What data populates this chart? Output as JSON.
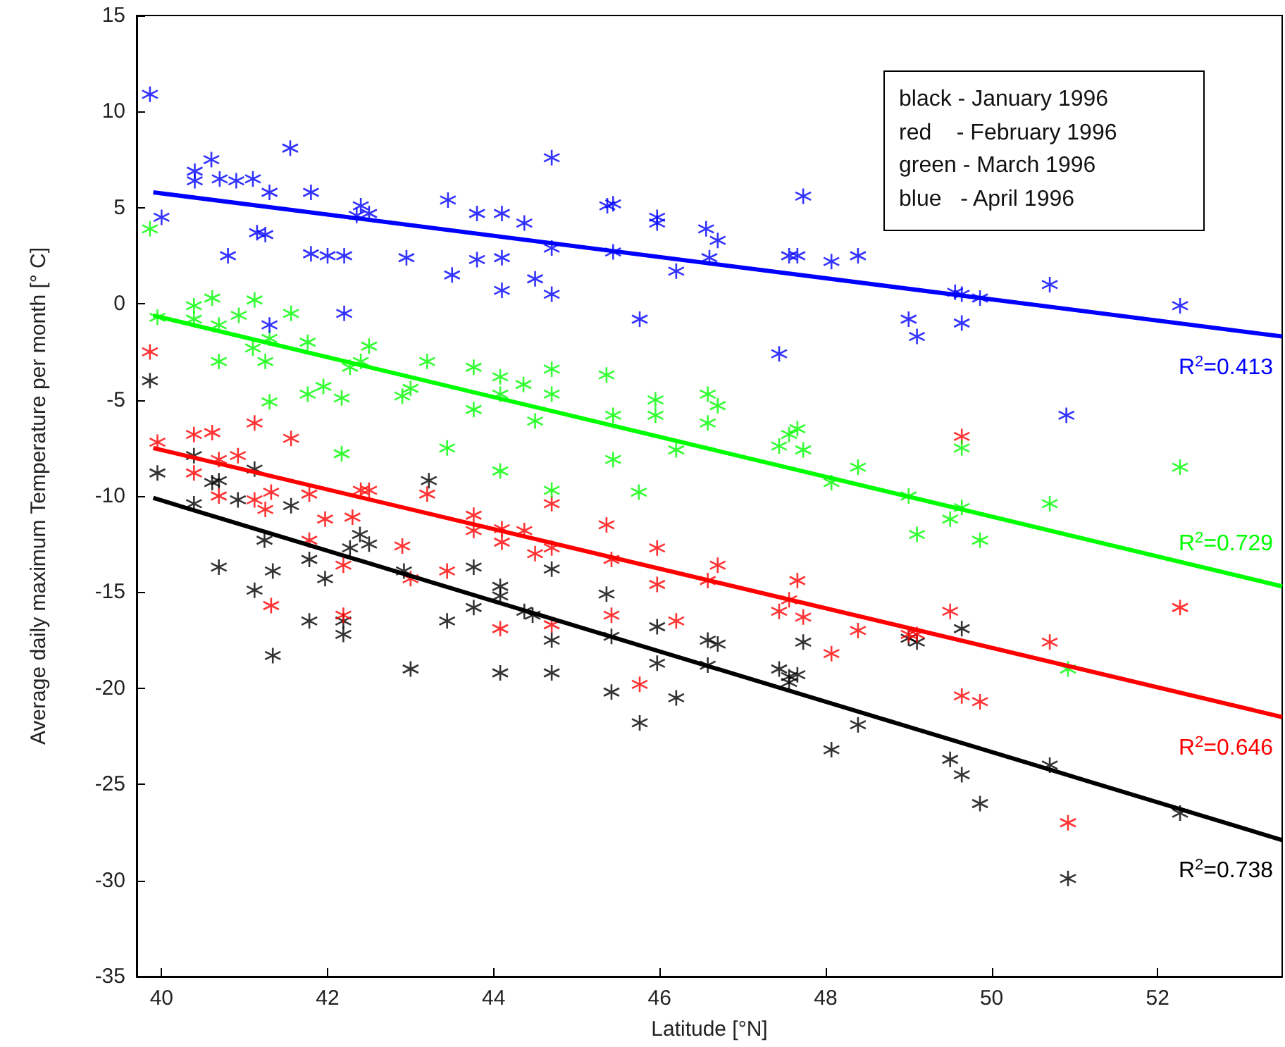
{
  "chart_data": {
    "type": "scatter",
    "xlabel": "Latitude [°N]",
    "ylabel": "Average daily maximum Temperature per month [° C]",
    "xlim": [
      39.7,
      53.5
    ],
    "xticks": [
      40,
      42,
      44,
      46,
      48,
      50,
      52
    ],
    "ylim": [
      -35,
      15
    ],
    "yticks": [
      -35,
      -30,
      -25,
      -20,
      -15,
      -10,
      -5,
      0,
      5,
      10,
      15
    ],
    "grid": false,
    "marker": "cross",
    "annotations": [
      "black - January 1996",
      "red    - February 1996",
      "green - March 1996",
      "blue   - April 1996",
      "R$^{2}$=0.738",
      "R$^{2}$=0.646",
      "R$^{2}$=0.729",
      "R$^{2}$=0.413"
    ],
    "series": [
      {
        "color": "#000000",
        "x": [
          39.86,
          39.95,
          40.39,
          40.39,
          40.61,
          40.69,
          40.69,
          40.92,
          41.12,
          41.12,
          41.24,
          41.34,
          41.34,
          41.56,
          41.78,
          41.78,
          41.97,
          42.19,
          42.19,
          42.27,
          42.39,
          42.5,
          42.92,
          43.0,
          43.22,
          43.44,
          43.76,
          43.76,
          44.08,
          44.08,
          44.08,
          44.37,
          44.47,
          44.7,
          44.7,
          44.7,
          45.36,
          45.42,
          45.42,
          45.76,
          45.97,
          45.97,
          46.2,
          46.58,
          46.58,
          46.7,
          47.44,
          47.56,
          47.56,
          47.66,
          47.73,
          48.07,
          48.39,
          49.0,
          49.1,
          49.5,
          49.64,
          49.64,
          49.86,
          50.7,
          50.92,
          52.27
        ],
        "values": [
          -4.0,
          -8.8,
          -7.9,
          -10.4,
          -9.3,
          -9.2,
          -13.7,
          -10.2,
          -8.6,
          -14.9,
          -12.3,
          -13.9,
          -18.3,
          -10.5,
          -13.3,
          -16.5,
          -14.3,
          -16.5,
          -17.2,
          -12.7,
          -12.0,
          -12.5,
          -13.9,
          -19.0,
          -9.2,
          -16.5,
          -13.7,
          -15.8,
          -14.7,
          -15.2,
          -19.2,
          -16.0,
          -16.2,
          -13.8,
          -17.5,
          -19.2,
          -15.1,
          -17.3,
          -20.2,
          -21.8,
          -16.8,
          -18.7,
          -20.5,
          -17.5,
          -18.8,
          -17.7,
          -19.0,
          -19.4,
          -19.7,
          -19.3,
          -17.6,
          -23.2,
          -21.9,
          -17.4,
          -17.6,
          -23.7,
          -16.9,
          -24.5,
          -26.0,
          -24.0,
          -29.9,
          -26.5
        ]
      },
      {
        "color": "#ff0000",
        "x": [
          39.86,
          39.95,
          40.39,
          40.39,
          40.61,
          40.69,
          40.69,
          40.92,
          41.12,
          41.12,
          41.25,
          41.32,
          41.32,
          41.56,
          41.78,
          41.78,
          41.97,
          42.19,
          42.19,
          42.3,
          42.4,
          42.5,
          42.9,
          43.0,
          43.2,
          43.44,
          43.76,
          43.76,
          44.08,
          44.1,
          44.1,
          44.37,
          44.5,
          44.7,
          44.7,
          44.7,
          45.36,
          45.42,
          45.42,
          45.76,
          45.97,
          45.97,
          46.2,
          46.58,
          46.7,
          47.44,
          47.56,
          47.66,
          47.73,
          48.07,
          48.39,
          49.0,
          49.1,
          49.5,
          49.64,
          49.64,
          49.86,
          50.7,
          50.92,
          52.27
        ],
        "values": [
          -2.5,
          -7.2,
          -6.8,
          -8.8,
          -6.7,
          -8.1,
          -10.0,
          -7.9,
          -6.2,
          -10.2,
          -10.7,
          -9.8,
          -15.7,
          -7.0,
          -9.9,
          -12.3,
          -11.2,
          -13.6,
          -16.2,
          -11.1,
          -9.7,
          -9.7,
          -12.6,
          -14.3,
          -9.9,
          -13.9,
          -11.0,
          -11.8,
          -16.9,
          -11.7,
          -12.4,
          -11.8,
          -13.0,
          -10.4,
          -12.7,
          -16.7,
          -11.5,
          -13.3,
          -16.2,
          -19.8,
          -12.7,
          -14.6,
          -16.5,
          -14.4,
          -13.6,
          -16.0,
          -15.4,
          -14.4,
          -16.3,
          -18.2,
          -17.0,
          -17.2,
          -17.2,
          -16.0,
          -6.9,
          -20.4,
          -20.7,
          -17.6,
          -27.0,
          -15.8
        ]
      },
      {
        "color": "#00ff00",
        "x": [
          39.86,
          39.95,
          40.39,
          40.39,
          40.61,
          40.69,
          40.69,
          40.93,
          41.12,
          41.1,
          41.25,
          41.3,
          41.3,
          41.56,
          41.76,
          41.76,
          41.95,
          42.17,
          42.17,
          42.27,
          42.4,
          42.5,
          42.9,
          43.0,
          43.2,
          43.44,
          43.76,
          43.76,
          44.08,
          44.08,
          44.08,
          44.36,
          44.5,
          44.7,
          44.7,
          44.7,
          45.36,
          45.44,
          45.44,
          45.75,
          45.95,
          45.95,
          46.2,
          46.58,
          46.58,
          46.7,
          47.44,
          47.56,
          47.66,
          47.73,
          48.07,
          48.39,
          49.0,
          49.1,
          49.5,
          49.64,
          49.64,
          49.86,
          50.7,
          50.92,
          52.27
        ],
        "values": [
          3.9,
          -0.7,
          -0.1,
          -0.8,
          0.3,
          -1.1,
          -3.0,
          -0.6,
          0.2,
          -2.3,
          -3.0,
          -1.8,
          -5.1,
          -0.5,
          -2.0,
          -4.7,
          -4.3,
          -4.9,
          -7.8,
          -3.3,
          -3.0,
          -2.2,
          -4.8,
          -4.4,
          -3.0,
          -7.5,
          -3.3,
          -5.5,
          -3.8,
          -4.7,
          -8.7,
          -4.2,
          -6.1,
          -3.4,
          -4.7,
          -9.7,
          -3.7,
          -5.8,
          -8.1,
          -9.8,
          -5.0,
          -5.8,
          -7.6,
          -4.7,
          -6.2,
          -5.3,
          -7.4,
          -6.8,
          -6.5,
          -7.6,
          -9.3,
          -8.5,
          -10.0,
          -12.0,
          -11.2,
          -7.5,
          -10.6,
          -12.3,
          -10.4,
          -19.0,
          -8.5
        ]
      },
      {
        "color": "#0000ff",
        "x": [
          39.86,
          40.0,
          40.4,
          40.4,
          40.6,
          40.7,
          40.8,
          40.9,
          41.1,
          41.15,
          41.25,
          41.3,
          41.3,
          41.55,
          41.8,
          41.8,
          42.0,
          42.2,
          42.2,
          42.35,
          42.4,
          42.5,
          42.95,
          43.45,
          43.5,
          43.8,
          43.8,
          44.1,
          44.1,
          44.1,
          44.37,
          44.5,
          44.7,
          44.7,
          44.7,
          45.37,
          45.44,
          45.44,
          45.76,
          45.97,
          45.97,
          46.2,
          46.56,
          46.6,
          46.7,
          47.44,
          47.56,
          47.66,
          47.73,
          48.07,
          48.39,
          49.0,
          49.1,
          49.56,
          49.64,
          49.64,
          49.86,
          50.7,
          50.9,
          52.27
        ],
        "values": [
          10.9,
          4.5,
          6.9,
          6.4,
          7.5,
          6.5,
          2.5,
          6.4,
          6.5,
          3.7,
          3.6,
          5.8,
          -1.1,
          8.1,
          5.8,
          2.6,
          2.5,
          2.5,
          -0.5,
          4.6,
          5.1,
          4.7,
          2.4,
          5.4,
          1.5,
          2.3,
          4.7,
          2.4,
          4.7,
          0.7,
          4.2,
          1.3,
          7.6,
          2.9,
          0.5,
          5.1,
          5.2,
          2.7,
          -0.8,
          4.5,
          4.2,
          1.7,
          3.9,
          2.4,
          3.3,
          -2.6,
          2.5,
          2.5,
          5.6,
          2.2,
          2.5,
          -0.8,
          -1.7,
          0.6,
          0.5,
          -1.0,
          0.3,
          1.0,
          -5.8,
          -0.1
        ]
      },
      {
        "type": "line",
        "marker": "none",
        "color": "#000000",
        "x": [
          39.9,
          53.5
        ],
        "values": [
          -10.1,
          -27.9
        ]
      },
      {
        "type": "line",
        "marker": "none",
        "color": "#ff0000",
        "x": [
          39.9,
          53.5
        ],
        "values": [
          -7.5,
          -21.5
        ]
      },
      {
        "type": "line",
        "marker": "none",
        "color": "#00ff00",
        "x": [
          39.9,
          53.5
        ],
        "values": [
          -0.6,
          -14.7
        ]
      },
      {
        "type": "line",
        "marker": "none",
        "color": "#0000ff",
        "x": [
          39.9,
          53.5
        ],
        "values": [
          5.8,
          -1.7
        ]
      }
    ]
  }
}
